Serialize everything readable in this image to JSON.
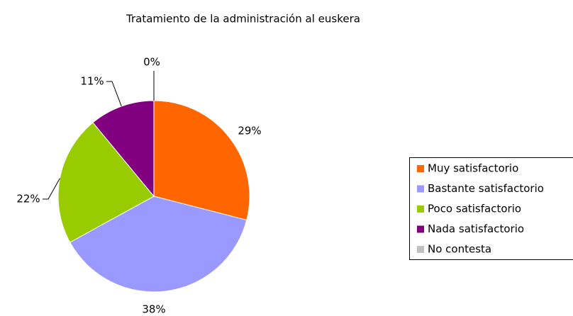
{
  "chart_data": {
    "type": "pie",
    "title": "Tratamiento de la administración al euskera",
    "categories": [
      "Muy satisfactorio",
      "Bastante satisfactorio",
      "Poco satisfactorio",
      "Nada satisfactorio",
      "No contesta"
    ],
    "values": [
      29,
      38,
      22,
      11,
      0
    ],
    "value_labels": [
      "29%",
      "38%",
      "22%",
      "11%",
      "0%"
    ],
    "colors": [
      "#FF6600",
      "#9999FF",
      "#99CC00",
      "#800080",
      "#C0C0C0"
    ],
    "legend": "right"
  }
}
